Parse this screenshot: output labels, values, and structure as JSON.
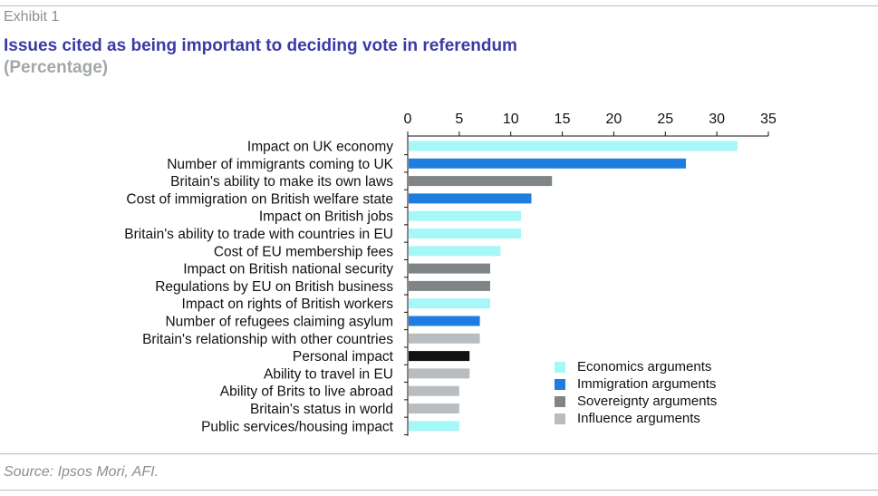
{
  "header": {
    "exhibit": "Exhibit 1",
    "title": "Issues cited as being important to deciding vote in referendum",
    "subtitle": "(Percentage)"
  },
  "footer": {
    "source": "Source: Ipsos Mori, AFI."
  },
  "colors": {
    "economics": "#a6f7f7",
    "immigration": "#1f7de0",
    "sovereignty": "#7f8487",
    "influence": "#b9bdbf",
    "personal": "#111111"
  },
  "chart_data": {
    "type": "bar",
    "orientation": "horizontal",
    "xlim": [
      0,
      35
    ],
    "xticks": [
      "0",
      "5",
      "10",
      "15",
      "20",
      "25",
      "30",
      "35"
    ],
    "x_axis_position": "top",
    "grid": false,
    "legend_position": "bottom-right",
    "title": "Issues cited as being important to deciding vote in referendum",
    "subtitle": "(Percentage)",
    "categories": [
      "Impact on UK economy",
      "Number of immigrants coming to UK",
      "Britain's ability to make its own laws",
      "Cost of immigration on British welfare state",
      "Impact on British jobs",
      "Britain's ability to trade with countries in EU",
      "Cost of EU membership fees",
      "Impact on British national security",
      "Regulations by EU on British business",
      "Impact on rights of British workers",
      "Number of refugees claiming asylum",
      "Britain's relationship with other countries",
      "Personal impact",
      "Ability to travel in EU",
      "Ability of Brits to live abroad",
      "Britain's status in world",
      "Public services/housing impact"
    ],
    "values": [
      32,
      27,
      14,
      12,
      11,
      11,
      9,
      8,
      8,
      8,
      7,
      7,
      6,
      6,
      5,
      5,
      5
    ],
    "groups": [
      "economics",
      "immigration",
      "sovereignty",
      "immigration",
      "economics",
      "economics",
      "economics",
      "sovereignty",
      "sovereignty",
      "economics",
      "immigration",
      "influence",
      "personal",
      "influence",
      "influence",
      "influence",
      "economics"
    ],
    "legend": [
      {
        "key": "economics",
        "label": "Economics arguments"
      },
      {
        "key": "immigration",
        "label": "Immigration arguments"
      },
      {
        "key": "sovereignty",
        "label": "Sovereignty arguments"
      },
      {
        "key": "influence",
        "label": "Influence arguments"
      }
    ]
  }
}
